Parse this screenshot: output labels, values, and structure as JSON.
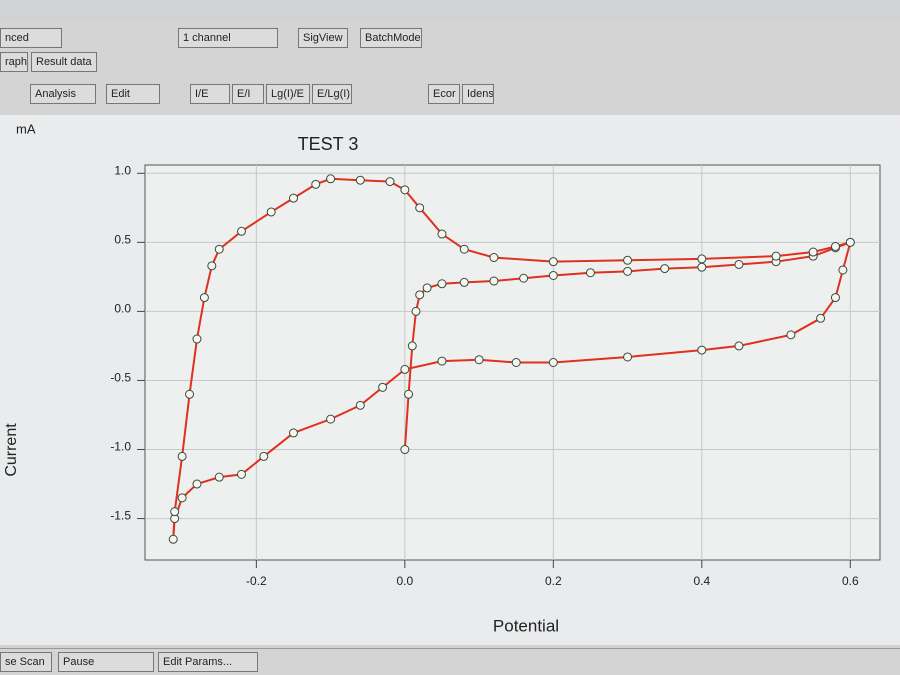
{
  "toolbar": {
    "row1": [
      "nced",
      "1 channel",
      "SigView",
      "BatchMode"
    ],
    "tabs": [
      "raph",
      "Result data"
    ],
    "row3": [
      "Analysis",
      "Edit",
      "I/E",
      "E/I",
      "Lg(I)/E",
      "E/Lg(I)",
      "Ecor",
      "Idens"
    ]
  },
  "bottom_buttons": [
    "se Scan",
    "Pause",
    "Edit Params..."
  ],
  "chart_data": {
    "type": "line",
    "title": "TEST 3",
    "unit_label": "mA",
    "x_label": "Potential",
    "y_label": "Current",
    "line_color": "#e0301e",
    "marker_color": "#3a4a3a",
    "grid": true,
    "xlim": [
      -0.35,
      0.64
    ],
    "ylim": [
      -1.8,
      1.06
    ],
    "xticks": [
      -0.2,
      {
        "value": 0,
        "label": "0.0"
      },
      0.2,
      0.4,
      0.6
    ],
    "yticks": [
      {
        "value": 1,
        "label": "1.0"
      },
      0.5,
      {
        "value": 0,
        "label": "0.0"
      },
      -0.5,
      {
        "value": -1,
        "label": "-1.0"
      },
      -1.5
    ],
    "x": [
      0.0,
      0.005,
      0.01,
      0.015,
      0.02,
      0.03,
      0.05,
      0.08,
      0.12,
      0.16,
      0.2,
      0.25,
      0.3,
      0.35,
      0.4,
      0.45,
      0.5,
      0.55,
      0.58,
      0.6,
      0.59,
      0.58,
      0.56,
      0.52,
      0.45,
      0.4,
      0.3,
      0.2,
      0.15,
      0.1,
      0.05,
      0.0,
      -0.03,
      -0.06,
      -0.1,
      -0.15,
      -0.19,
      -0.22,
      -0.25,
      -0.28,
      -0.3,
      -0.31,
      -0.312,
      -0.31,
      -0.3,
      -0.29,
      -0.28,
      -0.27,
      -0.26,
      -0.25,
      -0.22,
      -0.18,
      -0.15,
      -0.12,
      -0.1,
      -0.06,
      -0.02,
      0.0,
      0.02,
      0.05,
      0.08,
      0.12,
      0.2,
      0.3,
      0.4,
      0.5,
      0.55,
      0.58,
      0.6
    ],
    "values": [
      -1.0,
      -0.6,
      -0.25,
      0.0,
      0.12,
      0.17,
      0.2,
      0.21,
      0.22,
      0.24,
      0.26,
      0.28,
      0.29,
      0.31,
      0.32,
      0.34,
      0.36,
      0.4,
      0.46,
      0.5,
      0.3,
      0.1,
      -0.05,
      -0.17,
      -0.25,
      -0.28,
      -0.33,
      -0.37,
      -0.37,
      -0.35,
      -0.36,
      -0.42,
      -0.55,
      -0.68,
      -0.78,
      -0.88,
      -1.05,
      -1.18,
      -1.2,
      -1.25,
      -1.35,
      -1.5,
      -1.65,
      -1.45,
      -1.05,
      -0.6,
      -0.2,
      0.1,
      0.33,
      0.45,
      0.58,
      0.72,
      0.82,
      0.92,
      0.96,
      0.95,
      0.94,
      0.88,
      0.75,
      0.56,
      0.45,
      0.39,
      0.36,
      0.37,
      0.38,
      0.4,
      0.43,
      0.47,
      0.5
    ]
  }
}
